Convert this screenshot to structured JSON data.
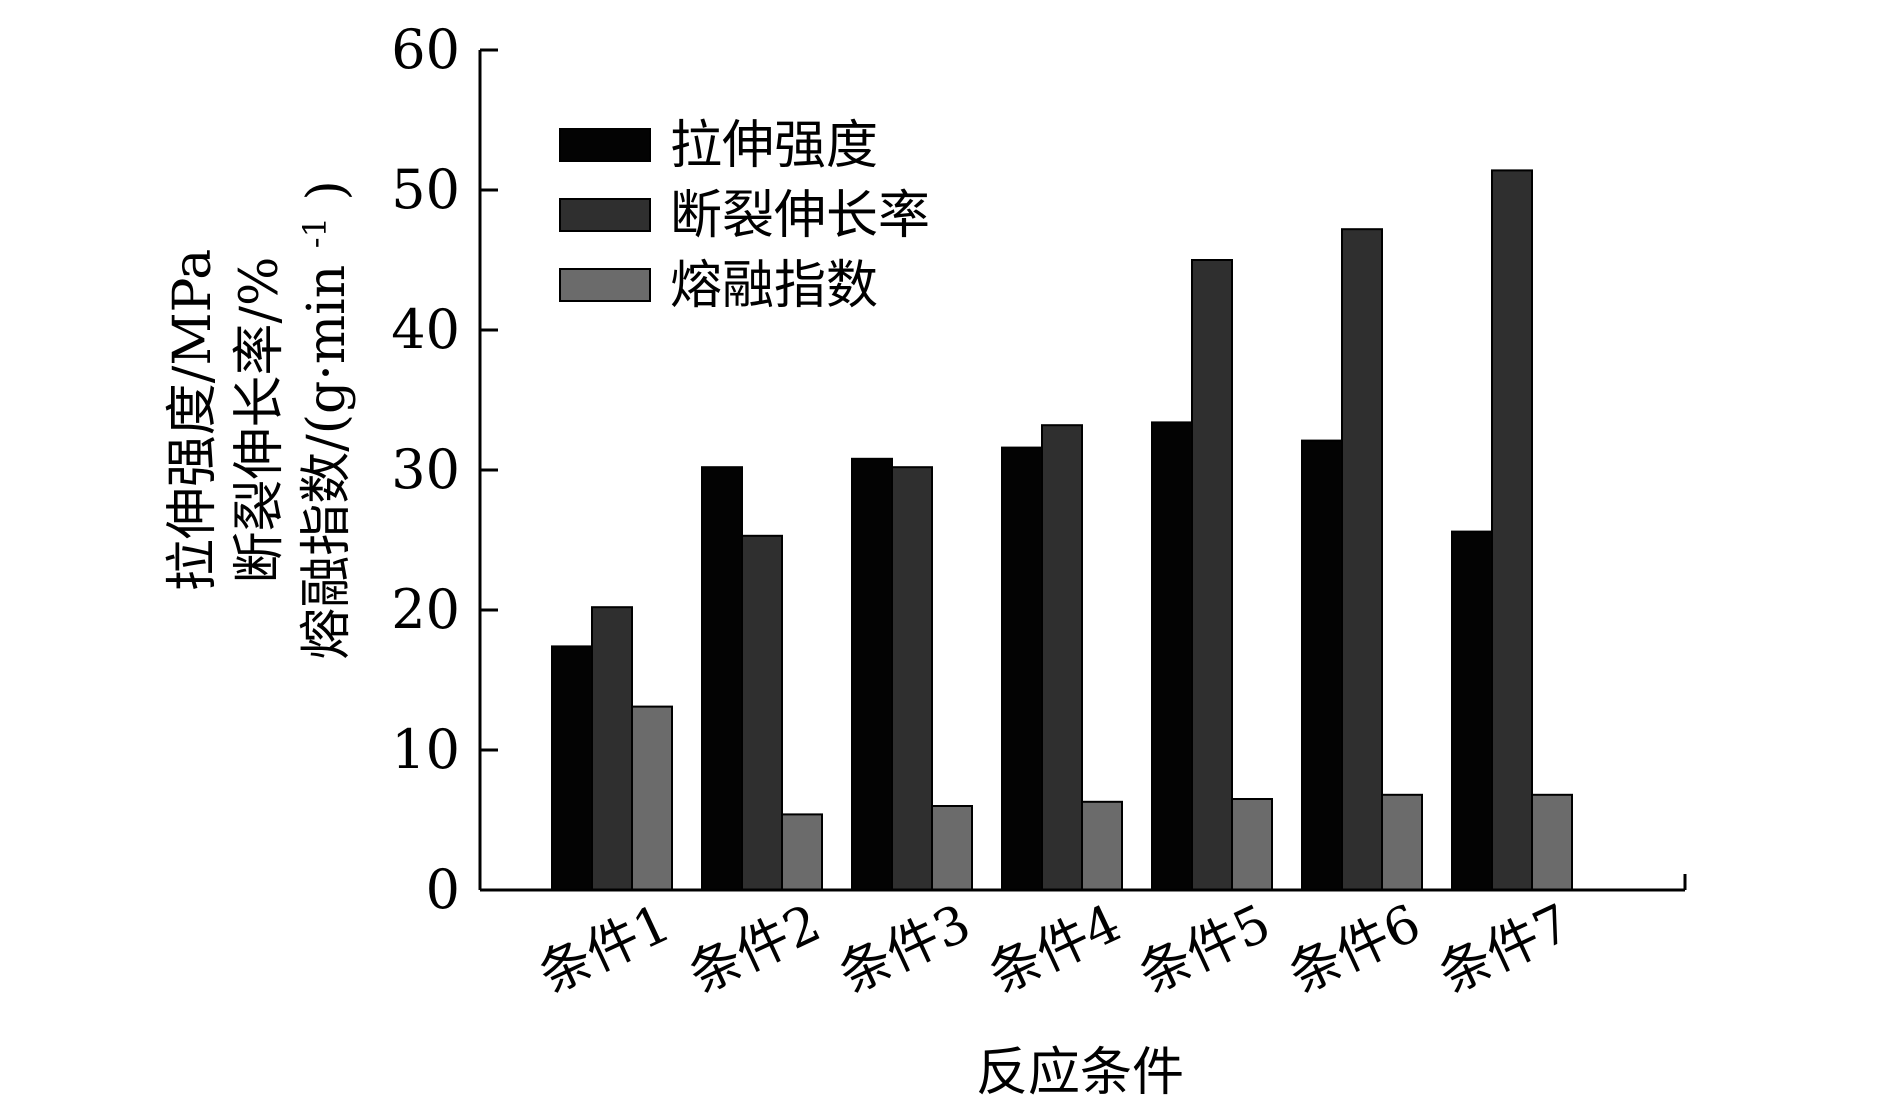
{
  "chart_data": {
    "type": "bar",
    "categories": [
      "条件1",
      "条件2",
      "条件3",
      "条件4",
      "条件5",
      "条件6",
      "条件7"
    ],
    "series": [
      {
        "name": "拉伸强度",
        "color": "#030303",
        "values": [
          17.4,
          30.2,
          30.8,
          31.6,
          33.4,
          32.1,
          25.6
        ]
      },
      {
        "name": "断裂伸长率",
        "color": "#2f2f2f",
        "values": [
          20.2,
          25.3,
          30.2,
          33.2,
          45.0,
          47.2,
          51.4
        ]
      },
      {
        "name": "熔融指数",
        "color": "#6b6b6b",
        "values": [
          13.1,
          5.4,
          6.0,
          6.3,
          6.5,
          6.8,
          6.8
        ]
      }
    ],
    "xlabel": "反应条件",
    "ylabel_lines": [
      "拉伸强度/MPa",
      "断裂伸长率/%",
      "熔融指数/(g·min",
      "-1",
      ")"
    ],
    "ylim": [
      0,
      60
    ],
    "yticks": [
      "0",
      "10",
      "20",
      "30",
      "40",
      "50",
      "60"
    ],
    "grid": false,
    "legend_position": "top-left"
  }
}
